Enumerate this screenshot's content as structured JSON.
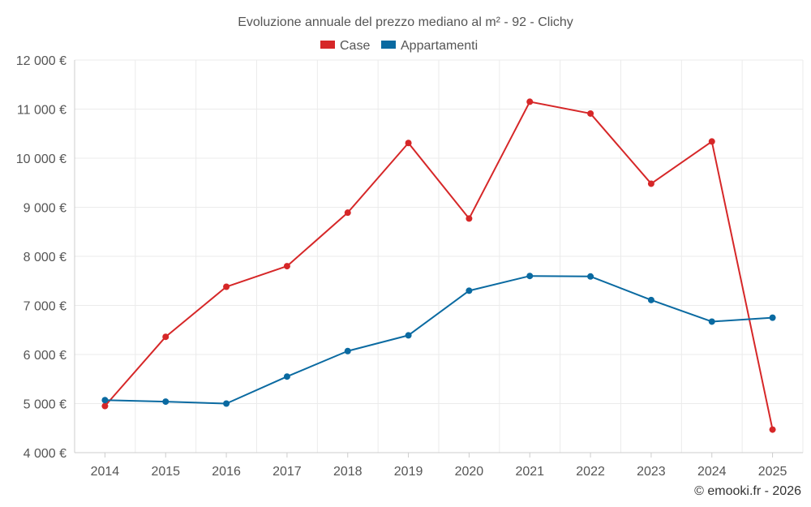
{
  "chart_data": {
    "type": "line",
    "title": "Evoluzione annuale del prezzo mediano al m² - 92 - Clichy",
    "categories": [
      "2014",
      "2015",
      "2016",
      "2017",
      "2018",
      "2019",
      "2020",
      "2021",
      "2022",
      "2023",
      "2024",
      "2025"
    ],
    "series": [
      {
        "name": "Case",
        "color": "#d62728",
        "values": [
          4950,
          6360,
          7380,
          7800,
          8890,
          10310,
          8770,
          11150,
          10910,
          9480,
          10340,
          4470
        ]
      },
      {
        "name": "Appartamenti",
        "color": "#0a6aa1",
        "values": [
          5070,
          5040,
          5000,
          5550,
          6070,
          6390,
          7300,
          7600,
          7590,
          7110,
          6670,
          6750
        ]
      }
    ],
    "ylim": [
      4000,
      12000
    ],
    "yticks": [
      4000,
      5000,
      6000,
      7000,
      8000,
      9000,
      10000,
      11000,
      12000
    ],
    "ytick_labels": [
      "4 000 €",
      "5 000 €",
      "6 000 €",
      "7 000 €",
      "8 000 €",
      "9 000 €",
      "10 000 €",
      "11 000 €",
      "12 000 €"
    ],
    "xlabel": "",
    "ylabel": "",
    "grid": true,
    "legend_position": "top-center"
  },
  "credit": "© emooki.fr - 2026"
}
